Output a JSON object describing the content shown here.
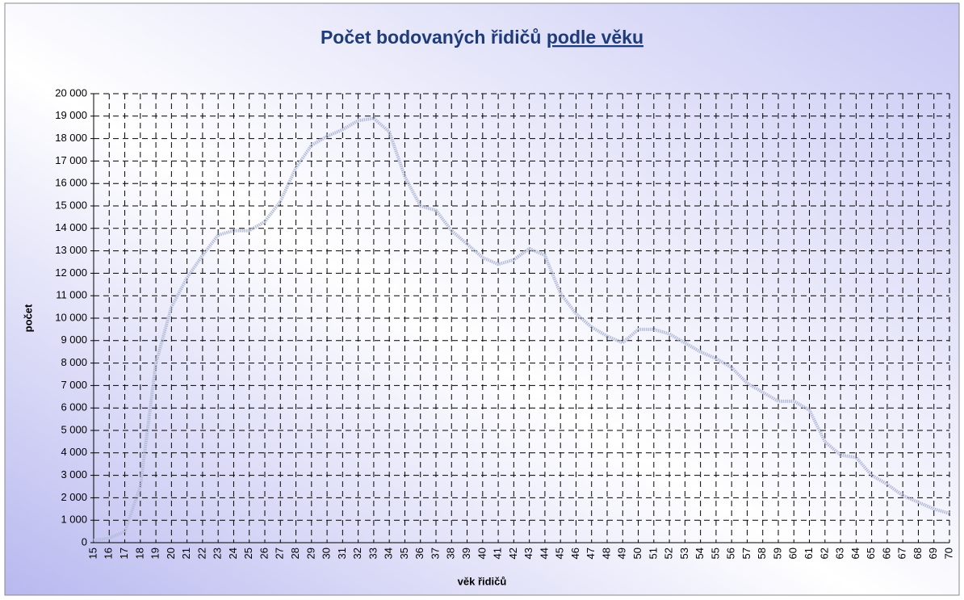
{
  "chart_data": {
    "type": "line",
    "title": "Počet bodovaných řidičů",
    "title_underlined": "podle věku",
    "xlabel": "věk řidičů",
    "ylabel": "počet",
    "categories": [
      "15",
      "16",
      "17",
      "18",
      "19",
      "20",
      "21",
      "22",
      "23",
      "24",
      "25",
      "26",
      "27",
      "28",
      "29",
      "30",
      "31",
      "32",
      "33",
      "34",
      "35",
      "36",
      "37",
      "38",
      "39",
      "40",
      "41",
      "42",
      "43",
      "44",
      "45",
      "46",
      "47",
      "48",
      "49",
      "50",
      "51",
      "52",
      "53",
      "54",
      "55",
      "56",
      "57",
      "58",
      "59",
      "60",
      "61",
      "62",
      "63",
      "64",
      "65",
      "66",
      "67",
      "68",
      "69",
      "70"
    ],
    "series": [
      {
        "color": "#b4bcd8",
        "values": [
          100,
          200,
          500,
          2500,
          8000,
          10500,
          11800,
          12800,
          13700,
          13900,
          13900,
          14300,
          15200,
          16700,
          17700,
          18100,
          18400,
          18800,
          18900,
          18300,
          16300,
          15000,
          14800,
          13900,
          13300,
          12700,
          12400,
          12600,
          13100,
          12800,
          11100,
          10200,
          9600,
          9200,
          8900,
          9500,
          9500,
          9300,
          8900,
          8500,
          8200,
          7800,
          7100,
          6700,
          6300,
          6300,
          5900,
          4500,
          3900,
          3800,
          3000,
          2600,
          2100,
          1800,
          1500,
          1300
        ]
      }
    ],
    "ylim": [
      0,
      20000
    ],
    "yticks": [
      0,
      {
        "value": 1000,
        "label": "1 000"
      },
      {
        "value": 2000,
        "label": "2 000"
      },
      {
        "value": 3000,
        "label": "3 000"
      },
      {
        "value": 4000,
        "label": "4 000"
      },
      {
        "value": 5000,
        "label": "5 000"
      },
      {
        "value": 6000,
        "label": "6 000"
      },
      {
        "value": 7000,
        "label": "7 000"
      },
      {
        "value": 8000,
        "label": "8 000"
      },
      {
        "value": 9000,
        "label": "9 000"
      },
      {
        "value": 10000,
        "label": "10 000"
      },
      {
        "value": 11000,
        "label": "11 000"
      },
      {
        "value": 12000,
        "label": "12 000"
      },
      {
        "value": 13000,
        "label": "13 000"
      },
      {
        "value": 14000,
        "label": "14 000"
      },
      {
        "value": 15000,
        "label": "15 000"
      },
      {
        "value": 16000,
        "label": "16 000"
      },
      {
        "value": 17000,
        "label": "17 000"
      },
      {
        "value": 18000,
        "label": "18 000"
      },
      {
        "value": 19000,
        "label": "19 000"
      },
      {
        "value": 20000,
        "label": "20 000"
      }
    ],
    "grid": true
  }
}
